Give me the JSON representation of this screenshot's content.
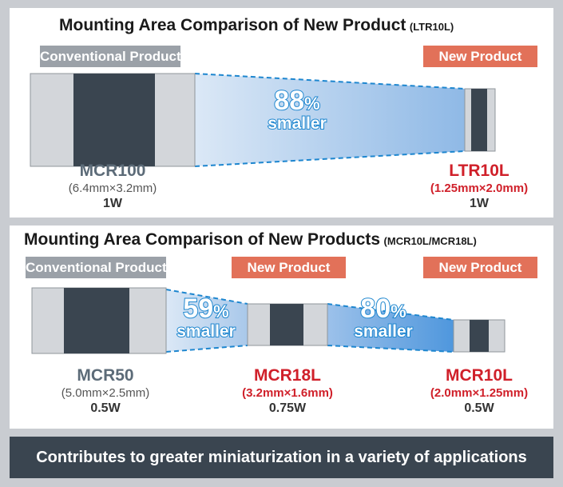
{
  "panel1": {
    "title_main": "Mounting Area Comparison of New Product",
    "title_sub": "(LTR10L)",
    "tag_conventional": "Conventional Product",
    "tag_new": "New Product",
    "reduction_number": "88",
    "reduction_unit": "%",
    "reduction_word": "smaller",
    "left_name": "MCR100",
    "left_dimensions": "(6.4mm×3.2mm)",
    "left_power": "1W",
    "right_name": "LTR10L",
    "right_dimensions": "(1.25mm×2.0mm)",
    "right_power": "1W"
  },
  "panel2": {
    "title_main": "Mounting Area Comparison of New Products",
    "title_sub": "(MCR10L/MCR18L)",
    "tag_conventional": "Conventional Product",
    "tag_new_1": "New Product",
    "tag_new_2": "New Product",
    "reduction1_number": "59",
    "reduction1_unit": "%",
    "reduction1_word": "smaller",
    "reduction2_number": "80",
    "reduction2_unit": "%",
    "reduction2_word": "smaller",
    "left_name": "MCR50",
    "left_dimensions": "(5.0mm×2.5mm)",
    "left_power": "0.5W",
    "mid_name": "MCR18L",
    "mid_dimensions": "(3.2mm×1.6mm)",
    "mid_power": "0.75W",
    "right_name": "MCR10L",
    "right_dimensions": "(2.0mm×1.25mm)",
    "right_power": "0.5W"
  },
  "footer": {
    "text": "Contributes to greater miniaturization in a variety of applications"
  },
  "colors": {
    "background": "#c9ccd1",
    "conventional_tag": "#9ba1a8",
    "new_tag": "#e27159",
    "resistor_body": "#3a4550",
    "resistor_terminal": "#d3d6da",
    "highlight_blue": "#1d86cf",
    "product_red": "#d0202a",
    "footer_bg": "#3a4550"
  }
}
